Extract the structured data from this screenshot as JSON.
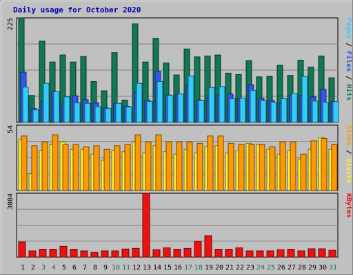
{
  "chart_data": {
    "type": "bar",
    "title": "Daily usage for October 2020",
    "days": [
      "1",
      "2",
      "3",
      "4",
      "5",
      "6",
      "7",
      "8",
      "9",
      "10",
      "11",
      "12",
      "13",
      "14",
      "15",
      "16",
      "17",
      "18",
      "19",
      "20",
      "21",
      "22",
      "23",
      "24",
      "25",
      "26",
      "27",
      "28",
      "29",
      "30",
      "31"
    ],
    "weekend_days": [
      "3",
      "4",
      "10",
      "11",
      "17",
      "18",
      "24",
      "25",
      "31"
    ],
    "panels": [
      {
        "name": "pages-files-hits",
        "ymax_label": "225",
        "ymax": 225,
        "right_label": [
          {
            "text": "Pages",
            "color": "#33ccff"
          },
          {
            "text": " / ",
            "color": "#000000"
          },
          {
            "text": "Files",
            "color": "#3355ee"
          },
          {
            "text": " / ",
            "color": "#000000"
          },
          {
            "text": "Hits",
            "color": "#117755"
          }
        ],
        "series": [
          {
            "name": "Hits",
            "color": "#117755",
            "values": [
              225,
              58,
              175,
              130,
              145,
              130,
              142,
              88,
              68,
              150,
              48,
              212,
              130,
              181,
              128,
              102,
              158,
              141,
              143,
              145,
              106,
              103,
              133,
              98,
              99,
              123,
              101,
              134,
              119,
              143,
              96
            ]
          },
          {
            "name": "Files",
            "color": "#3355ee",
            "values": [
              108,
              30,
              46,
              66,
              43,
              57,
              49,
              42,
              31,
              41,
              35,
              65,
              48,
              110,
              59,
              61,
              79,
              48,
              53,
              59,
              61,
              52,
              81,
              52,
              47,
              41,
              59,
              58,
              55,
              71,
              45
            ]
          },
          {
            "name": "Pages",
            "color": "#33ccff",
            "values": [
              76,
              27,
              84,
              66,
              55,
              42,
              41,
              34,
              30,
              41,
              33,
              84,
              45,
              88,
              58,
              61,
              100,
              47,
              75,
              77,
              51,
              52,
              69,
              47,
              43,
              51,
              62,
              99,
              46,
              43,
              45
            ]
          }
        ]
      },
      {
        "name": "sites-visits",
        "ymax_label": "54",
        "ymax": 54,
        "right_label": [
          {
            "text": "Sites",
            "color": "#ff9900"
          },
          {
            "text": " / ",
            "color": "#000000"
          },
          {
            "text": "Visits",
            "color": "#ffee33"
          }
        ],
        "series": [
          {
            "name": "Visits",
            "color": "#ffee33",
            "values": [
              42,
              14,
              33,
              38,
              40,
              34,
              34,
              30,
              25,
              33,
              32,
              40,
              31,
              37,
              32,
              30,
              34,
              31,
              36,
              37,
              31,
              33,
              39,
              38,
              34,
              30,
              33,
              26,
              34,
              44,
              34
            ]
          },
          {
            "name": "Sites",
            "color": "#ff9900",
            "values": [
              45,
              37,
              40,
              46,
              38,
              38,
              36,
              37,
              34,
              37,
              38,
              46,
              40,
              46,
              40,
              40,
              40,
              39,
              45,
              45,
              39,
              38,
              38,
              38,
              36,
              40,
              40,
              30,
              41,
              43,
              38
            ]
          }
        ]
      },
      {
        "name": "kbytes",
        "ymax_label": "3084",
        "ymax": 3084,
        "right_label": [
          {
            "text": "KBytes",
            "color": "#ee1111"
          }
        ],
        "series": [
          {
            "name": "KBytes",
            "color": "#ee1111",
            "values": [
              730,
              300,
              380,
              380,
              520,
              380,
              300,
              230,
              300,
              300,
              390,
              420,
              3084,
              360,
              450,
              380,
              420,
              760,
              1030,
              380,
              380,
              450,
              300,
              300,
              300,
              360,
              380,
              300,
              400,
              400,
              330
            ]
          }
        ]
      }
    ]
  }
}
